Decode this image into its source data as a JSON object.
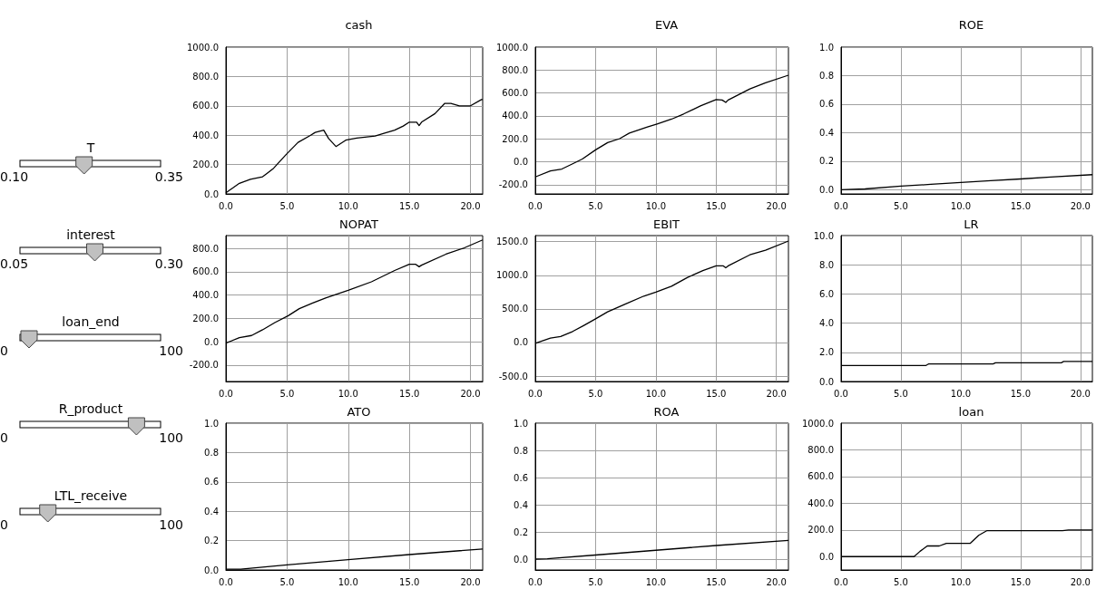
{
  "chart_data": [
    {
      "type": "other",
      "annotations": [
        "T",
        "0.10",
        "0.35",
        "interest",
        "0.05",
        "0.30",
        "loan_end",
        "0",
        "100",
        "R_product",
        "0",
        "100",
        "LTL_receive",
        "0",
        "100"
      ]
    },
    {
      "type": "line",
      "title": "cash",
      "grid": true,
      "xlim": [
        0,
        21
      ],
      "xticks": [
        {
          "value": 0,
          "label": "0.0"
        },
        {
          "value": 5,
          "label": "5.0"
        },
        {
          "value": 10,
          "label": "10.0"
        },
        {
          "value": 15,
          "label": "15.0"
        },
        {
          "value": 20,
          "label": "20.0"
        }
      ],
      "ylim": [
        0,
        1000
      ],
      "yticks": [
        {
          "value": 0,
          "label": "0.0"
        },
        {
          "value": 200,
          "label": "200.0"
        },
        {
          "value": 400,
          "label": "400.0"
        },
        {
          "value": 600,
          "label": "600.0"
        },
        {
          "value": 800,
          "label": "800.0"
        },
        {
          "value": 1000,
          "label": "1000.0"
        }
      ],
      "series": [
        {
          "color": "#000000",
          "x": [
            0,
            1.1,
            2,
            3,
            3.3,
            3.9,
            4.9,
            5.9,
            6.9,
            7.3,
            8,
            8.4,
            9,
            9.8,
            10.7,
            12.2,
            12.8,
            13.8,
            14.5,
            15,
            15.6,
            15.8,
            16,
            17.1,
            17.9,
            18.4,
            19.1,
            20,
            20.9,
            21
          ],
          "values": [
            8,
            72,
            100,
            117,
            136,
            175,
            266,
            351,
            398,
            419,
            434,
            377,
            323,
            366,
            381,
            394,
            409,
            434,
            462,
            489,
            489,
            466,
            489,
            547,
            617,
            617,
            600,
            600,
            643,
            643
          ]
        }
      ]
    },
    {
      "type": "line",
      "title": "EVA",
      "grid": true,
      "xlim": [
        0,
        21
      ],
      "xticks": [
        {
          "value": 0,
          "label": "0.0"
        },
        {
          "value": 5,
          "label": "5.0"
        },
        {
          "value": 10,
          "label": "10.0"
        },
        {
          "value": 15,
          "label": "15.0"
        },
        {
          "value": 20,
          "label": "20.0"
        }
      ],
      "ylim": [
        -280,
        1000
      ],
      "yticks": [
        {
          "value": -200,
          "label": "-200.0"
        },
        {
          "value": 0,
          "label": "0.0"
        },
        {
          "value": 200,
          "label": "200.0"
        },
        {
          "value": 400,
          "label": "400.0"
        },
        {
          "value": 600,
          "label": "600.0"
        },
        {
          "value": 800,
          "label": "800.0"
        },
        {
          "value": 1000,
          "label": "1000.0"
        }
      ],
      "series": [
        {
          "color": "#000000",
          "x": [
            0,
            1.25,
            2.2,
            3.1,
            3.9,
            5,
            6,
            7,
            7.8,
            9.3,
            10.1,
            11.3,
            12.3,
            13.7,
            15,
            15.5,
            15.8,
            16,
            17.8,
            19.1,
            21
          ],
          "values": [
            -132,
            -80,
            -63,
            -17,
            24,
            104,
            167,
            202,
            250,
            303,
            330,
            372,
            417,
            487,
            543,
            539,
            518,
            539,
            636,
            689,
            755
          ]
        }
      ]
    },
    {
      "type": "line",
      "title": "ROE",
      "grid": true,
      "xlim": [
        0,
        21
      ],
      "xticks": [
        {
          "value": 0,
          "label": "0.0"
        },
        {
          "value": 5,
          "label": "5.0"
        },
        {
          "value": 10,
          "label": "10.0"
        },
        {
          "value": 15,
          "label": "15.0"
        },
        {
          "value": 20,
          "label": "20.0"
        }
      ],
      "ylim": [
        -0.03,
        1
      ],
      "yticks": [
        {
          "value": 0,
          "label": "0.0"
        },
        0.2,
        0.4,
        0.6,
        0.8,
        {
          "value": 1,
          "label": "1.0"
        }
      ],
      "series": [
        {
          "color": "#000000",
          "x": [
            0,
            2,
            5,
            7.5,
            10,
            12.5,
            15,
            17.5,
            21
          ],
          "values": [
            0,
            0.005,
            0.025,
            0.037,
            0.05,
            0.063,
            0.075,
            0.088,
            0.105
          ]
        }
      ]
    },
    {
      "type": "line",
      "title": "NOPAT",
      "grid": true,
      "xlim": [
        0,
        21
      ],
      "xticks": [
        {
          "value": 0,
          "label": "0.0"
        },
        {
          "value": 5,
          "label": "5.0"
        },
        {
          "value": 10,
          "label": "10.0"
        },
        {
          "value": 15,
          "label": "15.0"
        },
        {
          "value": 20,
          "label": "20.0"
        }
      ],
      "ylim": [
        -340,
        910
      ],
      "yticks": [
        {
          "value": -200,
          "label": "-200.0"
        },
        {
          "value": 0,
          "label": "0.0"
        },
        {
          "value": 200,
          "label": "200.0"
        },
        {
          "value": 400,
          "label": "400.0"
        },
        {
          "value": 600,
          "label": "600.0"
        },
        {
          "value": 800,
          "label": "800.0"
        }
      ],
      "series": [
        {
          "color": "#000000",
          "x": [
            0,
            1.1,
            2.1,
            3,
            4,
            5.1,
            6,
            7.1,
            8.2,
            10,
            11.9,
            13.8,
            15,
            15.5,
            15.8,
            16,
            18,
            19.5,
            21
          ],
          "values": [
            -11,
            35,
            54,
            103,
            165,
            224,
            284,
            332,
            378,
            441,
            514,
            611,
            665,
            665,
            643,
            657,
            751,
            805,
            873
          ]
        }
      ]
    },
    {
      "type": "line",
      "title": "EBIT",
      "grid": true,
      "xlim": [
        0,
        21
      ],
      "xticks": [
        {
          "value": 0,
          "label": "0.0"
        },
        {
          "value": 5,
          "label": "5.0"
        },
        {
          "value": 10,
          "label": "10.0"
        },
        {
          "value": 15,
          "label": "15.0"
        },
        {
          "value": 20,
          "label": "20.0"
        }
      ],
      "ylim": [
        -580,
        1590
      ],
      "yticks": [
        {
          "value": -500,
          "label": "-500.0"
        },
        {
          "value": 0,
          "label": "0.0"
        },
        {
          "value": 500,
          "label": "500.0"
        },
        {
          "value": 1000,
          "label": "1000.0"
        },
        {
          "value": 1500,
          "label": "1500.0"
        }
      ],
      "series": [
        {
          "color": "#000000",
          "x": [
            0,
            1.25,
            2.1,
            3.1,
            4,
            5,
            6,
            7.5,
            9,
            10,
            11.3,
            12.6,
            13.9,
            15,
            15.6,
            15.8,
            16,
            17.8,
            19.1,
            21
          ],
          "values": [
            -12,
            64,
            88,
            164,
            251,
            351,
            456,
            573,
            690,
            749,
            836,
            965,
            1070,
            1140,
            1140,
            1111,
            1140,
            1304,
            1374,
            1509
          ]
        }
      ]
    },
    {
      "type": "line",
      "title": "LR",
      "grid": true,
      "xlim": [
        0,
        21
      ],
      "xticks": [
        {
          "value": 0,
          "label": "0.0"
        },
        {
          "value": 5,
          "label": "5.0"
        },
        {
          "value": 10,
          "label": "10.0"
        },
        {
          "value": 15,
          "label": "15.0"
        },
        {
          "value": 20,
          "label": "20.0"
        }
      ],
      "ylim": [
        0,
        10
      ],
      "yticks": [
        {
          "value": 0,
          "label": "0.0"
        },
        {
          "value": 2,
          "label": "2.0"
        },
        {
          "value": 4,
          "label": "4.0"
        },
        {
          "value": 6,
          "label": "6.0"
        },
        {
          "value": 8,
          "label": "8.0"
        },
        {
          "value": 10,
          "label": "10.0"
        }
      ],
      "series": [
        {
          "color": "#000000",
          "x": [
            0,
            7.1,
            7.3,
            12.7,
            12.9,
            18.4,
            18.6,
            21
          ],
          "values": [
            1.1,
            1.1,
            1.2,
            1.2,
            1.28,
            1.28,
            1.37,
            1.37
          ]
        }
      ]
    },
    {
      "type": "line",
      "title": "ATO",
      "grid": true,
      "xlim": [
        0,
        21
      ],
      "xticks": [
        {
          "value": 0,
          "label": "0.0"
        },
        {
          "value": 5,
          "label": "5.0"
        },
        {
          "value": 10,
          "label": "10.0"
        },
        {
          "value": 15,
          "label": "15.0"
        },
        {
          "value": 20,
          "label": "20.0"
        }
      ],
      "ylim": [
        0,
        1
      ],
      "yticks": [
        {
          "value": 0,
          "label": "0.0"
        },
        0.2,
        0.4,
        0.6,
        0.8,
        {
          "value": 1,
          "label": "1.0"
        }
      ],
      "series": [
        {
          "color": "#000000",
          "x": [
            0,
            1.2,
            5,
            10,
            15,
            21
          ],
          "values": [
            0.005,
            0.005,
            0.035,
            0.07,
            0.105,
            0.143
          ]
        }
      ]
    },
    {
      "type": "line",
      "title": "ROA",
      "grid": true,
      "xlim": [
        0,
        21
      ],
      "xticks": [
        {
          "value": 0,
          "label": "0.0"
        },
        {
          "value": 5,
          "label": "5.0"
        },
        {
          "value": 10,
          "label": "10.0"
        },
        {
          "value": 15,
          "label": "15.0"
        },
        {
          "value": 20,
          "label": "20.0"
        }
      ],
      "ylim": [
        -0.08,
        1
      ],
      "yticks": [
        {
          "value": 0,
          "label": "0.0"
        },
        0.2,
        0.4,
        0.6,
        0.8,
        {
          "value": 1,
          "label": "1.0"
        }
      ],
      "series": [
        {
          "color": "#000000",
          "x": [
            0,
            1,
            5,
            10,
            15,
            21
          ],
          "values": [
            0,
            0.003,
            0.03,
            0.065,
            0.1,
            0.137
          ]
        }
      ]
    },
    {
      "type": "line",
      "title": "loan",
      "grid": true,
      "xlim": [
        0,
        21
      ],
      "xticks": [
        {
          "value": 0,
          "label": "0.0"
        },
        {
          "value": 5,
          "label": "5.0"
        },
        {
          "value": 10,
          "label": "10.0"
        },
        {
          "value": 15,
          "label": "15.0"
        },
        {
          "value": 20,
          "label": "20.0"
        }
      ],
      "ylim": [
        -100,
        1000
      ],
      "yticks": [
        {
          "value": 0,
          "label": "0.0"
        },
        {
          "value": 200,
          "label": "200.0"
        },
        {
          "value": 400,
          "label": "400.0"
        },
        {
          "value": 600,
          "label": "600.0"
        },
        {
          "value": 800,
          "label": "800.0"
        },
        {
          "value": 1000,
          "label": "1000.0"
        }
      ],
      "series": [
        {
          "color": "#000000",
          "x": [
            0,
            6.1,
            6.6,
            7.2,
            8.2,
            8.8,
            10.8,
            11.5,
            12.2,
            18.5,
            19,
            21
          ],
          "values": [
            0,
            0,
            40,
            80,
            80,
            100,
            100,
            160,
            195,
            195,
            200,
            200
          ]
        }
      ]
    }
  ]
}
